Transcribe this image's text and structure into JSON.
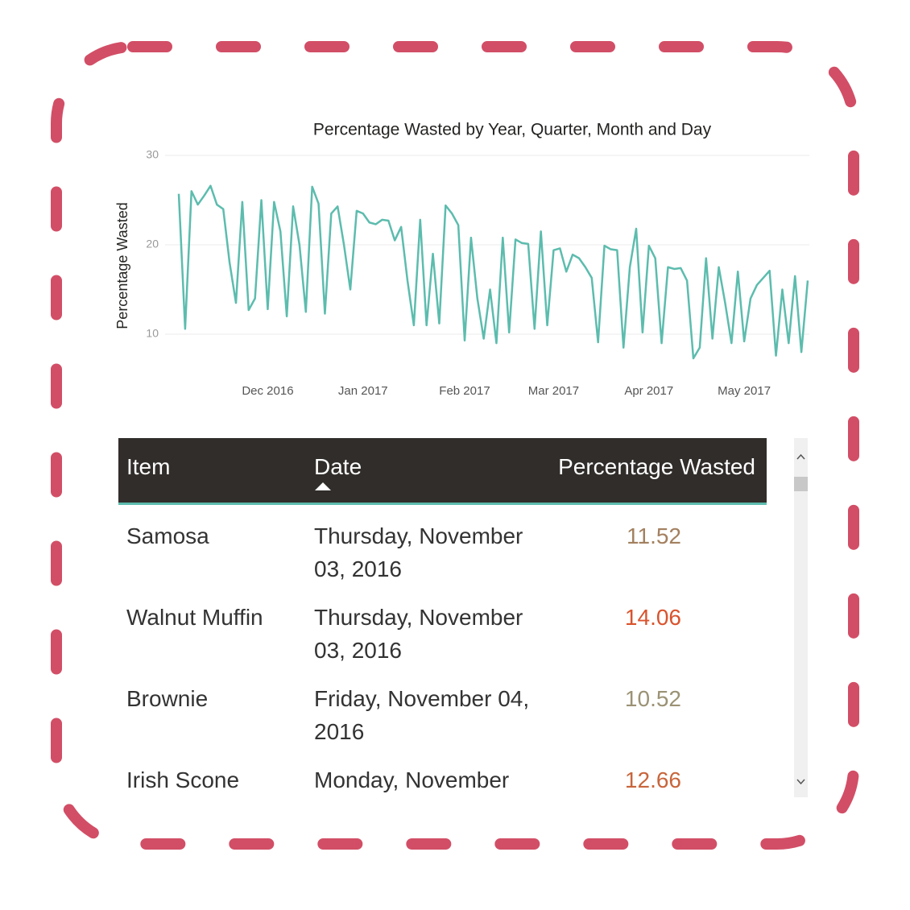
{
  "chart_data": {
    "type": "line",
    "title": "Percentage Wasted by Year, Quarter, Month and Day",
    "y_label": "Percentage Wasted",
    "categories": [
      null,
      null,
      null,
      null,
      null,
      null,
      null,
      null,
      null,
      null,
      null,
      null,
      null,
      null,
      "Dec 2016",
      null,
      null,
      null,
      null,
      null,
      null,
      null,
      null,
      null,
      null,
      null,
      null,
      null,
      null,
      "Jan 2017",
      null,
      null,
      null,
      null,
      null,
      null,
      null,
      null,
      null,
      null,
      null,
      null,
      null,
      null,
      null,
      "Feb 2017",
      null,
      null,
      null,
      null,
      null,
      null,
      null,
      null,
      null,
      null,
      null,
      null,
      null,
      "Mar 2017",
      null,
      null,
      null,
      null,
      null,
      null,
      null,
      null,
      null,
      null,
      null,
      null,
      null,
      null,
      "Apr 2017",
      null,
      null,
      null,
      null,
      null,
      null,
      null,
      null,
      null,
      null,
      null,
      null,
      null,
      null,
      "May 2017",
      null,
      null,
      null,
      null,
      null,
      null,
      null,
      null,
      null,
      null
    ],
    "series": [
      {
        "name": "Percentage Wasted",
        "color": "#5cbcad",
        "values": [
          25.7,
          10.6,
          26,
          24.5,
          25.5,
          26.6,
          24.5,
          24,
          18,
          13.5,
          24.8,
          12.7,
          14,
          25,
          12.8,
          24.8,
          21.5,
          12,
          24.3,
          20,
          12.5,
          26.5,
          24.6,
          12.3,
          23.5,
          24.3,
          20,
          15,
          23.8,
          23.5,
          22.5,
          22.3,
          22.8,
          22.7,
          20.5,
          22,
          16,
          11,
          22.8,
          11,
          19,
          11.2,
          24.4,
          23.5,
          22.2,
          9.3,
          20.8,
          14,
          9.5,
          15,
          9,
          20.8,
          10.2,
          20.6,
          20.2,
          20.1,
          10.6,
          21.5,
          11,
          19.4,
          19.6,
          17,
          18.9,
          18.5,
          17.5,
          16.3,
          9.1,
          19.9,
          19.5,
          19.4,
          8.5,
          17.5,
          21.8,
          10.2,
          19.9,
          18.5,
          9,
          17.5,
          17.3,
          17.4,
          16,
          7.3,
          8.5,
          18.5,
          9.5,
          17.5,
          13.5,
          9,
          17,
          9.2,
          14,
          15.5,
          16.3,
          17.1,
          7.6,
          15,
          9,
          16.5,
          8,
          16
        ]
      }
    ],
    "ylim": [
      6,
      30
    ],
    "yticks": [
      10,
      20,
      30
    ],
    "grid": true
  },
  "table": {
    "header": [
      "Item",
      "Date",
      "Percentage Wasted"
    ],
    "rows": [
      {
        "item": "Samosa",
        "date": "Thursday, November 03, 2016",
        "value": 11.52,
        "color": "#a3805f"
      },
      {
        "item": "Walnut Muffin",
        "date": "Thursday, November 03, 2016",
        "value": 14.06,
        "color": "#d9532c"
      },
      {
        "item": "Brownie",
        "date": "Friday, November 04, 2016",
        "value": 10.52,
        "color": "#9b9275"
      },
      {
        "item": "Irish Scone",
        "date": "Monday, November",
        "value": 12.66,
        "color": "#c8653b"
      }
    ]
  }
}
